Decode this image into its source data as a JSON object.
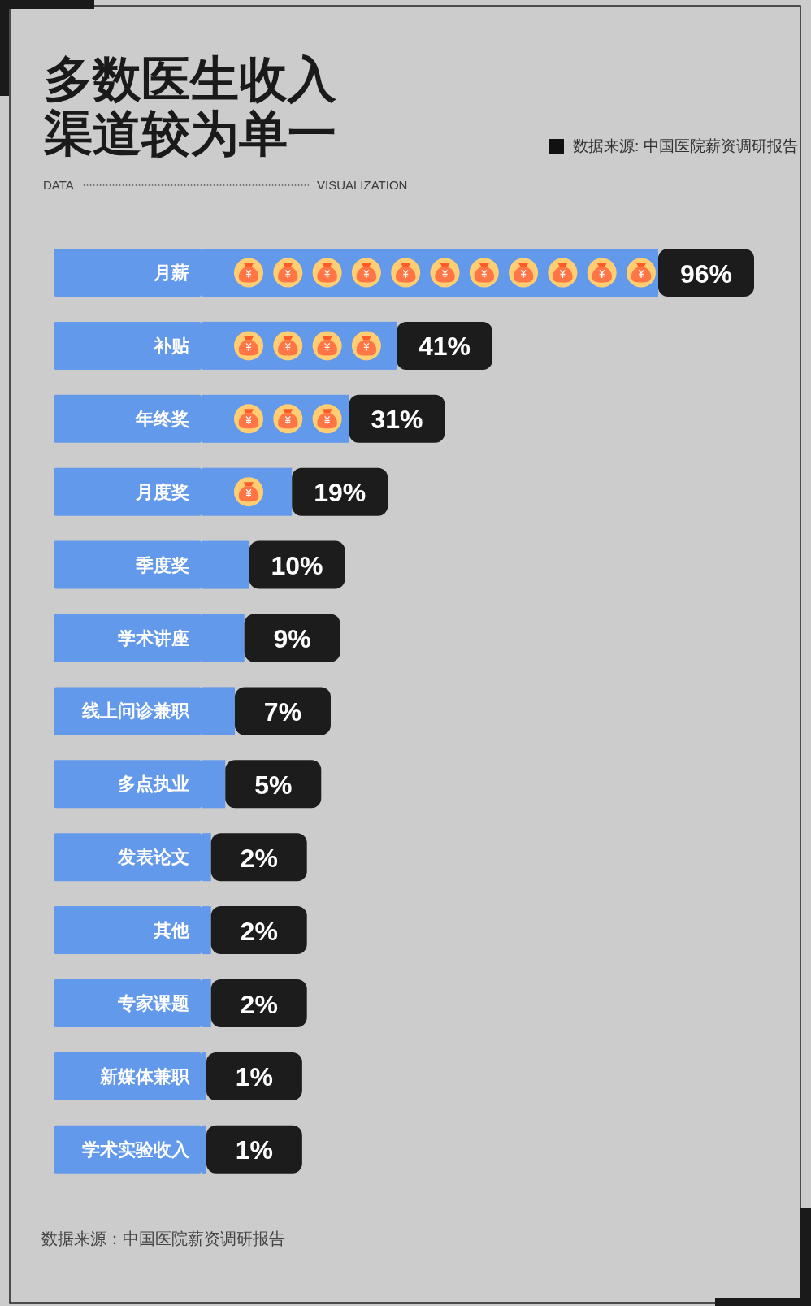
{
  "chart_data": {
    "type": "bar",
    "orientation": "horizontal",
    "title": "多数医生收入渠道较为单一",
    "categories": [
      "月薪",
      "补贴",
      "年终奖",
      "月度奖",
      "季度奖",
      "学术讲座",
      "线上问诊兼职",
      "多点执业",
      "发表论文",
      "其他",
      "专家课题",
      "新媒体兼职",
      "学术实验收入"
    ],
    "values": [
      96,
      41,
      31,
      19,
      10,
      9,
      7,
      5,
      2,
      2,
      2,
      1,
      1
    ],
    "value_labels": [
      "96%",
      "41%",
      "31%",
      "19%",
      "10%",
      "9%",
      "7%",
      "5%",
      "2%",
      "2%",
      "2%",
      "1%",
      "1%"
    ],
    "color": "#6399ea",
    "annotations": [
      "DATA",
      "VISUALIZATION",
      "数据来源: 中国医院薪资调研报告",
      "数据来源：中国医院薪资调研报告"
    ]
  }
}
